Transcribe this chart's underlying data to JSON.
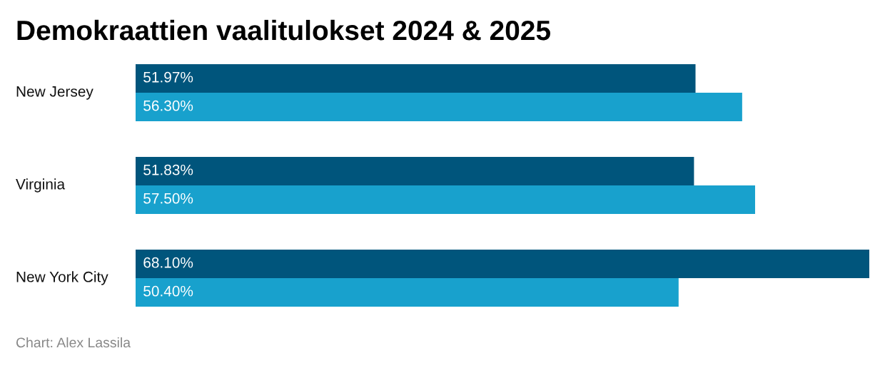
{
  "chart_data": {
    "type": "bar",
    "orientation": "horizontal",
    "title": "Demokraattien vaalitulokset 2024 & 2025",
    "categories": [
      "New Jersey",
      "Virginia",
      "New York City"
    ],
    "series": [
      {
        "color": "#00557c",
        "values": [
          51.97,
          51.83,
          68.1
        ],
        "value_labels": [
          "51.97%",
          "51.83%",
          "68.10%"
        ]
      },
      {
        "color": "#18a1cd",
        "values": [
          56.3,
          57.5,
          50.4
        ],
        "value_labels": [
          "56.30%",
          "57.50%",
          "50.40%"
        ]
      }
    ],
    "annotations": [
      "Chart: Alex Lassila"
    ]
  }
}
